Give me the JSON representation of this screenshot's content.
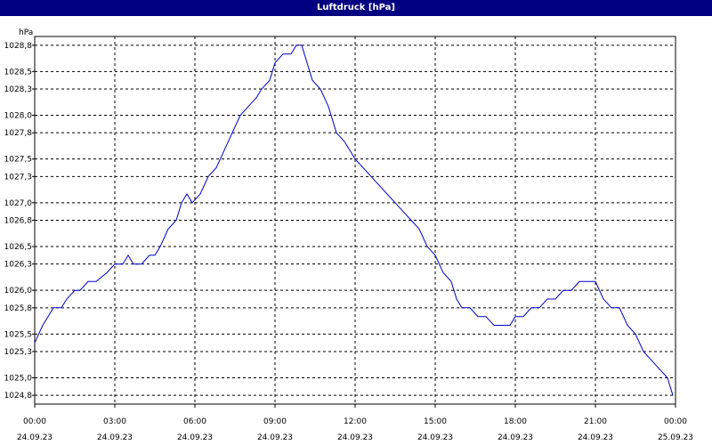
{
  "window": {
    "title": "Luftdruck [hPa]"
  },
  "chart_data": {
    "type": "line",
    "title": "Luftdruck [hPa]",
    "ylabel": "hPa",
    "xlabel": "",
    "ylim": [
      1024.7,
      1028.9
    ],
    "xlim": [
      0,
      24
    ],
    "grid": true,
    "legend": "none",
    "y_ticks": [
      {
        "value": 1024.8,
        "label": "1024,8"
      },
      {
        "value": 1025.0,
        "label": "1025,0"
      },
      {
        "value": 1025.3,
        "label": "1025,3"
      },
      {
        "value": 1025.5,
        "label": "1025,5"
      },
      {
        "value": 1025.8,
        "label": "1025,8"
      },
      {
        "value": 1026.0,
        "label": "1026,0"
      },
      {
        "value": 1026.3,
        "label": "1026,3"
      },
      {
        "value": 1026.5,
        "label": "1026,5"
      },
      {
        "value": 1026.8,
        "label": "1026,8"
      },
      {
        "value": 1027.0,
        "label": "1027,0"
      },
      {
        "value": 1027.3,
        "label": "1027,3"
      },
      {
        "value": 1027.5,
        "label": "1027,5"
      },
      {
        "value": 1027.8,
        "label": "1027,8"
      },
      {
        "value": 1028.0,
        "label": "1028,0"
      },
      {
        "value": 1028.3,
        "label": "1028,3"
      },
      {
        "value": 1028.5,
        "label": "1028,5"
      },
      {
        "value": 1028.8,
        "label": "1028,8"
      }
    ],
    "x_ticks": [
      {
        "value": 0,
        "time": "00:00",
        "date": "24.09.23"
      },
      {
        "value": 3,
        "time": "03:00",
        "date": "24.09.23"
      },
      {
        "value": 6,
        "time": "06:00",
        "date": "24.09.23"
      },
      {
        "value": 9,
        "time": "09:00",
        "date": "24.09.23"
      },
      {
        "value": 12,
        "time": "12:00",
        "date": "24.09.23"
      },
      {
        "value": 15,
        "time": "15:00",
        "date": "24.09.23"
      },
      {
        "value": 18,
        "time": "18:00",
        "date": "24.09.23"
      },
      {
        "value": 21,
        "time": "21:00",
        "date": "24.09.23"
      },
      {
        "value": 24,
        "time": "00:00",
        "date": "25.09.23"
      }
    ],
    "series": [
      {
        "color": "#0000cc",
        "x": [
          0,
          0.3,
          0.5,
          0.7,
          1.0,
          1.2,
          1.5,
          1.7,
          2.0,
          2.3,
          2.7,
          3.0,
          3.3,
          3.5,
          3.7,
          4.0,
          4.3,
          4.5,
          4.7,
          5.0,
          5.3,
          5.5,
          5.7,
          5.9,
          6.2,
          6.5,
          6.8,
          7.1,
          7.4,
          7.7,
          8.0,
          8.3,
          8.5,
          8.8,
          9.0,
          9.3,
          9.6,
          9.8,
          10.0,
          10.2,
          10.4,
          10.7,
          11.0,
          11.3,
          11.6,
          11.8,
          12.0,
          12.3,
          12.6,
          12.9,
          13.2,
          13.5,
          13.8,
          14.1,
          14.4,
          14.7,
          15.0,
          15.3,
          15.6,
          15.8,
          16.0,
          16.3,
          16.6,
          16.9,
          17.2,
          17.5,
          17.8,
          18.0,
          18.3,
          18.6,
          18.9,
          19.2,
          19.5,
          19.8,
          20.1,
          20.4,
          20.7,
          21.0,
          21.3,
          21.6,
          21.9,
          22.2,
          22.5,
          22.8,
          23.1,
          23.4,
          23.7,
          23.9
        ],
        "values": [
          1025.4,
          1025.6,
          1025.7,
          1025.8,
          1025.8,
          1025.9,
          1026.0,
          1026.0,
          1026.1,
          1026.1,
          1026.2,
          1026.3,
          1026.3,
          1026.4,
          1026.3,
          1026.3,
          1026.4,
          1026.4,
          1026.5,
          1026.7,
          1026.8,
          1027.0,
          1027.1,
          1027.0,
          1027.1,
          1027.3,
          1027.4,
          1027.6,
          1027.8,
          1028.0,
          1028.1,
          1028.2,
          1028.3,
          1028.4,
          1028.6,
          1028.7,
          1028.7,
          1028.8,
          1028.8,
          1028.6,
          1028.4,
          1028.3,
          1028.1,
          1027.8,
          1027.7,
          1027.6,
          1027.5,
          1027.4,
          1027.3,
          1027.2,
          1027.1,
          1027.0,
          1026.9,
          1026.8,
          1026.7,
          1026.5,
          1026.4,
          1026.2,
          1026.1,
          1025.9,
          1025.8,
          1025.8,
          1025.7,
          1025.7,
          1025.6,
          1025.6,
          1025.6,
          1025.7,
          1025.7,
          1025.8,
          1025.8,
          1025.9,
          1025.9,
          1026.0,
          1026.0,
          1026.1,
          1026.1,
          1026.1,
          1025.9,
          1025.8,
          1025.8,
          1025.6,
          1025.5,
          1025.3,
          1025.2,
          1025.1,
          1025.0,
          1024.8
        ]
      }
    ]
  }
}
